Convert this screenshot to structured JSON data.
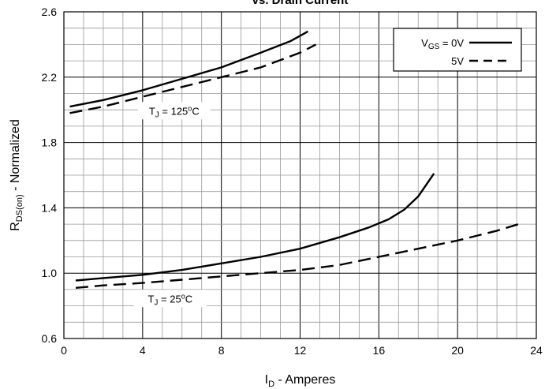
{
  "chart_data": {
    "type": "line",
    "title": "vs. Drain Current",
    "xlabel": {
      "main": "I",
      "sub": "D",
      "rest": " - Amperes"
    },
    "ylabel": {
      "main": "R",
      "sub": "DS(on)",
      "rest": " - Normalized"
    },
    "xlim": [
      0,
      24
    ],
    "ylim": [
      0.6,
      2.6
    ],
    "x_ticks": [
      "0",
      "4",
      "8",
      "12",
      "16",
      "20",
      "24"
    ],
    "y_ticks": [
      "0.6",
      "1.0",
      "1.4",
      "1.8",
      "2.2",
      "2.6"
    ],
    "grid": true,
    "legend": {
      "placement": "top-right",
      "entries": [
        {
          "pre": "V",
          "sub": "GS",
          "post": " = 0V",
          "style": "solid"
        },
        {
          "pre": "",
          "sub": "",
          "post": "5V",
          "style": "dashed"
        }
      ]
    },
    "annotations": [
      {
        "pre": "T",
        "sub": "J",
        "mid": " = 125",
        "sup": "o",
        "post": "C",
        "x": 5.6,
        "y": 1.99
      },
      {
        "pre": "T",
        "sub": "J",
        "mid": " = 25",
        "sup": "o",
        "post": "C",
        "x": 5.4,
        "y": 0.84
      }
    ],
    "series": [
      {
        "style": "solid",
        "condition": "125",
        "x": [
          0.3,
          2,
          4,
          6,
          8,
          10,
          11.5,
          12.4
        ],
        "y": [
          2.02,
          2.06,
          2.12,
          2.19,
          2.26,
          2.35,
          2.42,
          2.48
        ]
      },
      {
        "style": "dashed",
        "condition": "125",
        "x": [
          0.3,
          2,
          4,
          6,
          8,
          10,
          12,
          12.8
        ],
        "y": [
          1.98,
          2.02,
          2.08,
          2.14,
          2.2,
          2.26,
          2.35,
          2.4
        ]
      },
      {
        "style": "solid",
        "condition": "25",
        "x": [
          0.6,
          2,
          4,
          6,
          8,
          10,
          12,
          14,
          15.5,
          16.5,
          17.3,
          18,
          18.8
        ],
        "y": [
          0.955,
          0.97,
          0.99,
          1.02,
          1.06,
          1.1,
          1.15,
          1.22,
          1.28,
          1.33,
          1.39,
          1.47,
          1.61
        ]
      },
      {
        "style": "dashed",
        "condition": "25",
        "x": [
          0.6,
          2,
          4,
          6,
          8,
          10,
          12,
          14,
          16,
          18,
          20,
          22,
          23.1
        ],
        "y": [
          0.91,
          0.925,
          0.94,
          0.96,
          0.98,
          1.0,
          1.02,
          1.05,
          1.1,
          1.15,
          1.2,
          1.26,
          1.3
        ]
      }
    ]
  }
}
